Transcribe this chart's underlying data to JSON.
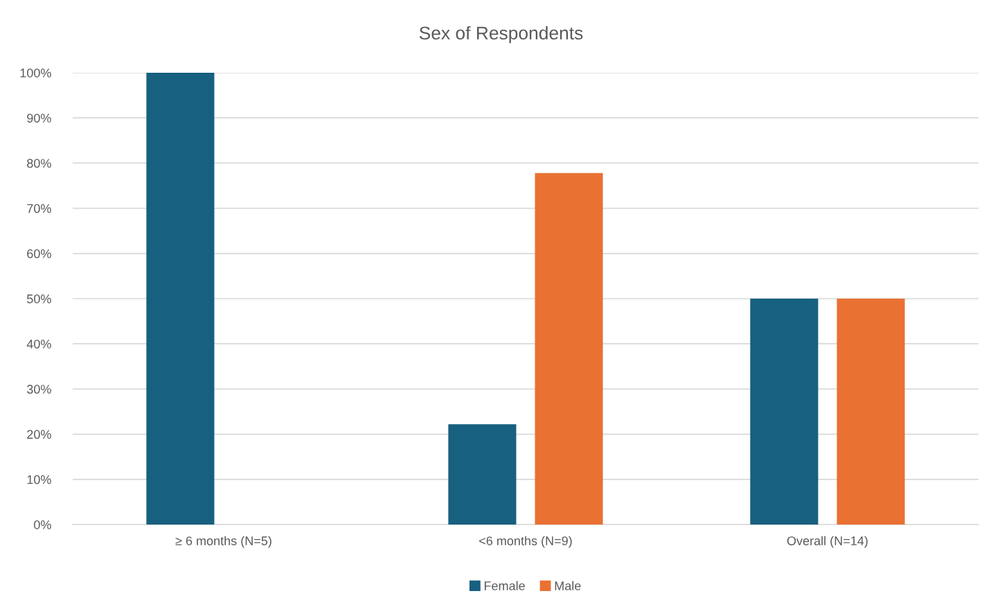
{
  "chart_data": {
    "type": "bar",
    "title": "Sex of Respondents",
    "categories": [
      "≥ 6 months (N=5)",
      "<6 months (N=9)",
      "Overall (N=14)"
    ],
    "series": [
      {
        "name": "Female",
        "color": "#17607f",
        "values": [
          100,
          22.2,
          50
        ]
      },
      {
        "name": "Male",
        "color": "#e97132",
        "values": [
          0,
          77.8,
          50
        ]
      }
    ],
    "ylim": [
      0,
      100
    ],
    "yticks": [
      {
        "value": 0,
        "label": "0%"
      },
      {
        "value": 10,
        "label": "10%"
      },
      {
        "value": 20,
        "label": "20%"
      },
      {
        "value": 30,
        "label": "30%"
      },
      {
        "value": 40,
        "label": "40%"
      },
      {
        "value": 50,
        "label": "50%"
      },
      {
        "value": 60,
        "label": "60%"
      },
      {
        "value": 70,
        "label": "70%"
      },
      {
        "value": 80,
        "label": "80%"
      },
      {
        "value": 90,
        "label": "90%"
      },
      {
        "value": 100,
        "label": "100%"
      }
    ],
    "grid": "y",
    "legend": "bottom"
  }
}
